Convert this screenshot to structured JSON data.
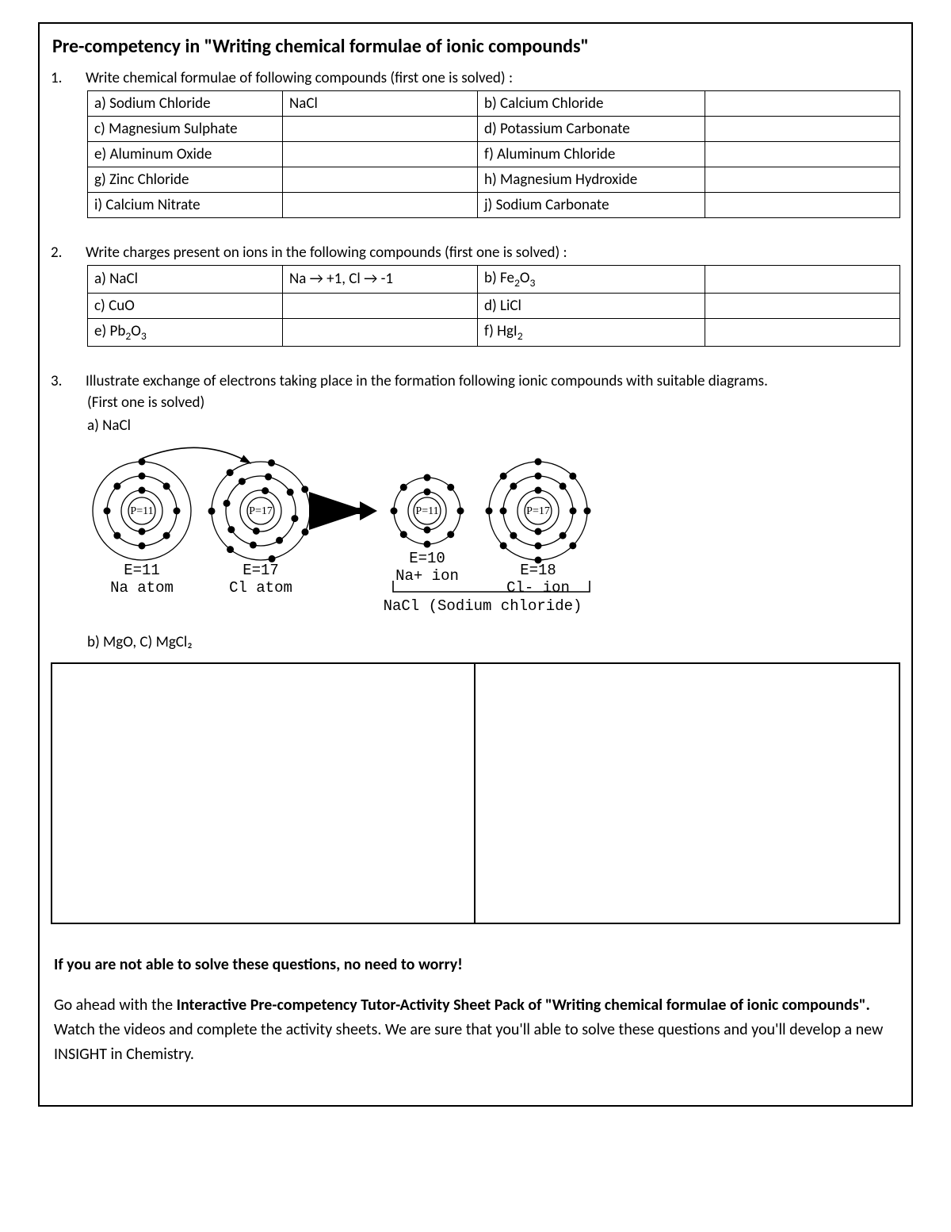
{
  "title": "Pre-competency in \"Writing chemical formulae of ionic compounds\"",
  "q1": {
    "num": "1.",
    "prompt": "Write chemical formulae of following compounds (first one is solved) :",
    "rows": [
      {
        "aLabel": "a) Sodium Chloride",
        "aAns": "NaCl",
        "bLabel": "b) Calcium Chloride",
        "bAns": ""
      },
      {
        "aLabel": "c) Magnesium Sulphate",
        "aAns": "",
        "bLabel": "d) Potassium Carbonate",
        "bAns": ""
      },
      {
        "aLabel": "e) Aluminum Oxide",
        "aAns": "",
        "bLabel": "f) Aluminum Chloride",
        "bAns": ""
      },
      {
        "aLabel": "g) Zinc Chloride",
        "aAns": "",
        "bLabel": "h) Magnesium Hydroxide",
        "bAns": ""
      },
      {
        "aLabel": "i) Calcium Nitrate",
        "aAns": "",
        "bLabel": "j) Sodium Carbonate",
        "bAns": ""
      }
    ]
  },
  "q2": {
    "num": "2.",
    "prompt": "Write charges present on ions in the following compounds (first one is solved) :",
    "rows": [
      {
        "aLabelHTML": "a) NaCl",
        "aAns": "Na → +1, Cl → -1",
        "bLabelHTML": "b) Fe<span class='sub'>2</span>O<span class='sub'>3</span>",
        "bAns": ""
      },
      {
        "aLabelHTML": "c) CuO",
        "aAns": "",
        "bLabelHTML": "d) LiCl",
        "bAns": ""
      },
      {
        "aLabelHTML": "e) Pb<span class='sub'>2</span>O<span class='sub'>3</span>",
        "aAns": "",
        "bLabelHTML": "f) HgI<span class='sub'>2</span>",
        "bAns": ""
      }
    ]
  },
  "q3": {
    "num": "3.",
    "prompt": "Illustrate exchange of electrons taking place in the formation following ionic compounds with suitable diagrams.",
    "hint": "(First one is solved)",
    "partA": "a) NaCl",
    "partB": "b) MgO, C) MgCl₂",
    "diagram": {
      "na_atom": {
        "p_label": "P=11",
        "e_label": "E=11",
        "caption": "Na atom",
        "shells": [
          2,
          8,
          1
        ]
      },
      "cl_atom": {
        "p_label": "P=17",
        "e_label": "E=17",
        "caption": "Cl atom",
        "shells": [
          2,
          8,
          7
        ]
      },
      "na_ion": {
        "p_label": "P=11",
        "e_label": "E=10",
        "caption": "Na+ ion",
        "shells": [
          2,
          8
        ]
      },
      "cl_ion": {
        "p_label": "P=17",
        "e_label": "E=18",
        "caption": "Cl- ion",
        "shells": [
          2,
          8,
          8
        ]
      },
      "compound_caption": "NaCl (Sodium chloride)"
    }
  },
  "footer": {
    "line1": "If you are not able to solve these questions, no need to worry!",
    "line2_a": "Go ahead with the ",
    "line2_bold": "Interactive Pre-competency Tutor-Activity Sheet Pack of \"Writing chemical formulae of ionic compounds\".",
    "line2_b": " Watch the videos and complete the activity sheets. We are sure that you'll able to solve these questions and you'll develop a new INSIGHT in Chemistry."
  },
  "style": {
    "border_color": "#000000",
    "electron_fill": "#000000",
    "electron_r": 4.5,
    "nucleus_r": 17,
    "shell_radii_3": [
      26,
      44,
      62
    ],
    "shell_radii_2": [
      24,
      42
    ]
  }
}
